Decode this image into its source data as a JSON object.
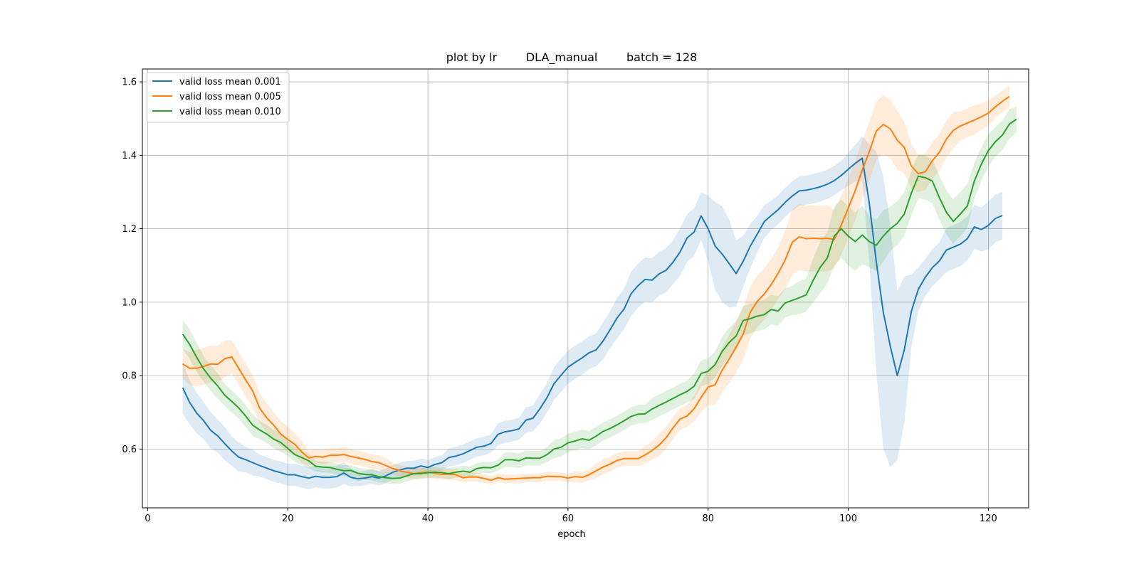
{
  "chart_data": {
    "type": "line",
    "title": "plot by lr        DLA_manual        batch = 128",
    "xlabel": "epoch",
    "ylabel": "",
    "xlim": [
      -0.75,
      125.75
    ],
    "ylim": [
      0.44,
      1.635
    ],
    "xticks": [
      0,
      20,
      40,
      60,
      80,
      100,
      120
    ],
    "yticks": [
      0.6,
      0.8,
      1.0,
      1.2,
      1.4,
      1.6
    ],
    "ytick_labels": [
      "0.6",
      "0.8",
      "1.0",
      "1.2",
      "1.4",
      "1.6"
    ],
    "grid": true,
    "legend_position": "upper-left",
    "x_start": 5,
    "series": [
      {
        "name": "valid loss mean 0.001",
        "color": "#1f77b4",
        "values": [
          0.767,
          0.727,
          0.698,
          0.677,
          0.651,
          0.636,
          0.615,
          0.595,
          0.578,
          0.571,
          0.563,
          0.555,
          0.548,
          0.541,
          0.536,
          0.53,
          0.53,
          0.525,
          0.521,
          0.526,
          0.523,
          0.523,
          0.525,
          0.535,
          0.523,
          0.519,
          0.521,
          0.525,
          0.521,
          0.527,
          0.537,
          0.543,
          0.548,
          0.548,
          0.554,
          0.55,
          0.558,
          0.563,
          0.577,
          0.581,
          0.587,
          0.596,
          0.605,
          0.608,
          0.615,
          0.64,
          0.647,
          0.65,
          0.655,
          0.679,
          0.684,
          0.71,
          0.74,
          0.778,
          0.801,
          0.823,
          0.836,
          0.848,
          0.862,
          0.87,
          0.894,
          0.925,
          0.957,
          0.981,
          1.023,
          1.045,
          1.062,
          1.06,
          1.077,
          1.087,
          1.109,
          1.137,
          1.175,
          1.191,
          1.235,
          1.2,
          1.153,
          1.131,
          1.105,
          1.078,
          1.111,
          1.152,
          1.185,
          1.219,
          1.236,
          1.252,
          1.272,
          1.289,
          1.303,
          1.305,
          1.309,
          1.314,
          1.321,
          1.331,
          1.345,
          1.362,
          1.378,
          1.392,
          1.27,
          1.11,
          0.973,
          0.88,
          0.8,
          0.87,
          0.975,
          1.035,
          1.068,
          1.094,
          1.112,
          1.142,
          1.15,
          1.158,
          1.173,
          1.205,
          1.198,
          1.209,
          1.228,
          1.236
        ],
        "band_width": [
          0.07,
          0.06,
          0.055,
          0.05,
          0.05,
          0.045,
          0.045,
          0.04,
          0.04,
          0.035,
          0.035,
          0.03,
          0.03,
          0.03,
          0.03,
          0.03,
          0.03,
          0.03,
          0.03,
          0.03,
          0.03,
          0.03,
          0.03,
          0.03,
          0.025,
          0.02,
          0.02,
          0.02,
          0.02,
          0.02,
          0.02,
          0.02,
          0.02,
          0.02,
          0.02,
          0.02,
          0.02,
          0.02,
          0.025,
          0.025,
          0.025,
          0.025,
          0.025,
          0.025,
          0.025,
          0.03,
          0.03,
          0.03,
          0.03,
          0.035,
          0.035,
          0.04,
          0.04,
          0.045,
          0.045,
          0.045,
          0.045,
          0.045,
          0.045,
          0.045,
          0.05,
          0.05,
          0.055,
          0.055,
          0.06,
          0.06,
          0.06,
          0.06,
          0.06,
          0.06,
          0.06,
          0.065,
          0.065,
          0.065,
          0.065,
          0.09,
          0.12,
          0.13,
          0.12,
          0.09,
          0.07,
          0.06,
          0.05,
          0.045,
          0.04,
          0.04,
          0.04,
          0.04,
          0.04,
          0.04,
          0.04,
          0.04,
          0.04,
          0.04,
          0.04,
          0.045,
          0.05,
          0.06,
          0.16,
          0.3,
          0.37,
          0.33,
          0.23,
          0.2,
          0.1,
          0.06,
          0.05,
          0.05,
          0.05,
          0.06,
          0.06,
          0.06,
          0.06,
          0.06,
          0.06,
          0.065,
          0.065,
          0.065
        ]
      },
      {
        "name": "valid loss mean 0.005",
        "color": "#ff7f0e",
        "values": [
          0.832,
          0.82,
          0.82,
          0.825,
          0.832,
          0.831,
          0.846,
          0.851,
          0.82,
          0.788,
          0.758,
          0.711,
          0.685,
          0.665,
          0.641,
          0.626,
          0.613,
          0.592,
          0.576,
          0.58,
          0.578,
          0.583,
          0.583,
          0.585,
          0.58,
          0.576,
          0.572,
          0.566,
          0.563,
          0.555,
          0.547,
          0.541,
          0.537,
          0.533,
          0.536,
          0.537,
          0.534,
          0.531,
          0.532,
          0.53,
          0.522,
          0.524,
          0.524,
          0.52,
          0.515,
          0.522,
          0.518,
          0.519,
          0.52,
          0.521,
          0.522,
          0.522,
          0.526,
          0.525,
          0.525,
          0.521,
          0.525,
          0.523,
          0.53,
          0.541,
          0.551,
          0.559,
          0.569,
          0.574,
          0.574,
          0.574,
          0.584,
          0.596,
          0.611,
          0.631,
          0.658,
          0.682,
          0.69,
          0.71,
          0.741,
          0.769,
          0.775,
          0.815,
          0.845,
          0.878,
          0.913,
          0.972,
          1.002,
          1.022,
          1.048,
          1.079,
          1.115,
          1.163,
          1.178,
          1.173,
          1.174,
          1.173,
          1.174,
          1.171,
          1.21,
          1.256,
          1.304,
          1.36,
          1.41,
          1.466,
          1.484,
          1.472,
          1.441,
          1.421,
          1.371,
          1.35,
          1.355,
          1.385,
          1.408,
          1.444,
          1.468,
          1.48,
          1.488,
          1.496,
          1.505,
          1.515,
          1.532,
          1.547,
          1.56
        ],
        "band_width": [
          0.04,
          0.045,
          0.05,
          0.05,
          0.05,
          0.05,
          0.05,
          0.045,
          0.045,
          0.045,
          0.045,
          0.04,
          0.04,
          0.035,
          0.035,
          0.035,
          0.03,
          0.03,
          0.02,
          0.02,
          0.02,
          0.02,
          0.02,
          0.02,
          0.02,
          0.02,
          0.02,
          0.02,
          0.02,
          0.02,
          0.015,
          0.015,
          0.015,
          0.015,
          0.015,
          0.015,
          0.015,
          0.015,
          0.015,
          0.015,
          0.012,
          0.012,
          0.012,
          0.012,
          0.012,
          0.012,
          0.012,
          0.012,
          0.012,
          0.012,
          0.012,
          0.012,
          0.012,
          0.012,
          0.012,
          0.012,
          0.015,
          0.015,
          0.015,
          0.02,
          0.02,
          0.02,
          0.02,
          0.02,
          0.02,
          0.02,
          0.025,
          0.025,
          0.03,
          0.03,
          0.03,
          0.03,
          0.03,
          0.035,
          0.04,
          0.05,
          0.055,
          0.06,
          0.065,
          0.07,
          0.07,
          0.07,
          0.07,
          0.07,
          0.07,
          0.07,
          0.08,
          0.09,
          0.09,
          0.09,
          0.09,
          0.09,
          0.09,
          0.08,
          0.08,
          0.08,
          0.08,
          0.08,
          0.08,
          0.08,
          0.08,
          0.08,
          0.08,
          0.07,
          0.06,
          0.05,
          0.05,
          0.05,
          0.05,
          0.05,
          0.05,
          0.04,
          0.04,
          0.04,
          0.035,
          0.035,
          0.03,
          0.03,
          0.03,
          0.03
        ]
      },
      {
        "name": "valid loss mean 0.010",
        "color": "#2ca02c",
        "values": [
          0.913,
          0.885,
          0.85,
          0.818,
          0.793,
          0.772,
          0.747,
          0.73,
          0.712,
          0.69,
          0.665,
          0.652,
          0.641,
          0.627,
          0.618,
          0.602,
          0.585,
          0.577,
          0.568,
          0.553,
          0.551,
          0.55,
          0.545,
          0.541,
          0.542,
          0.534,
          0.531,
          0.53,
          0.525,
          0.522,
          0.52,
          0.521,
          0.527,
          0.533,
          0.533,
          0.536,
          0.537,
          0.536,
          0.533,
          0.537,
          0.54,
          0.537,
          0.547,
          0.55,
          0.549,
          0.556,
          0.571,
          0.571,
          0.568,
          0.576,
          0.575,
          0.575,
          0.585,
          0.6,
          0.605,
          0.617,
          0.622,
          0.628,
          0.624,
          0.635,
          0.648,
          0.656,
          0.666,
          0.677,
          0.689,
          0.695,
          0.696,
          0.709,
          0.719,
          0.728,
          0.738,
          0.748,
          0.757,
          0.771,
          0.806,
          0.812,
          0.83,
          0.866,
          0.89,
          0.908,
          0.95,
          0.955,
          0.962,
          0.966,
          0.98,
          0.976,
          0.998,
          1.005,
          1.012,
          1.02,
          1.06,
          1.095,
          1.12,
          1.18,
          1.2,
          1.18,
          1.165,
          1.183,
          1.165,
          1.155,
          1.18,
          1.2,
          1.215,
          1.24,
          1.297,
          1.343,
          1.339,
          1.33,
          1.285,
          1.245,
          1.22,
          1.24,
          1.262,
          1.33,
          1.376,
          1.413,
          1.437,
          1.455,
          1.485,
          1.498
        ],
        "band_width": [
          0.04,
          0.04,
          0.04,
          0.035,
          0.035,
          0.035,
          0.03,
          0.03,
          0.03,
          0.03,
          0.03,
          0.025,
          0.025,
          0.025,
          0.025,
          0.02,
          0.02,
          0.02,
          0.02,
          0.015,
          0.015,
          0.015,
          0.015,
          0.015,
          0.015,
          0.015,
          0.015,
          0.015,
          0.015,
          0.015,
          0.015,
          0.015,
          0.015,
          0.015,
          0.015,
          0.015,
          0.015,
          0.015,
          0.015,
          0.015,
          0.015,
          0.015,
          0.015,
          0.015,
          0.015,
          0.015,
          0.02,
          0.02,
          0.02,
          0.02,
          0.02,
          0.02,
          0.02,
          0.025,
          0.025,
          0.025,
          0.025,
          0.025,
          0.025,
          0.025,
          0.025,
          0.025,
          0.025,
          0.025,
          0.025,
          0.025,
          0.025,
          0.03,
          0.03,
          0.03,
          0.03,
          0.03,
          0.03,
          0.035,
          0.035,
          0.035,
          0.035,
          0.04,
          0.04,
          0.04,
          0.04,
          0.04,
          0.04,
          0.04,
          0.04,
          0.04,
          0.04,
          0.04,
          0.045,
          0.045,
          0.06,
          0.07,
          0.07,
          0.08,
          0.08,
          0.08,
          0.08,
          0.08,
          0.07,
          0.07,
          0.07,
          0.06,
          0.06,
          0.06,
          0.06,
          0.06,
          0.06,
          0.06,
          0.06,
          0.06,
          0.06,
          0.06,
          0.06,
          0.05,
          0.045,
          0.045,
          0.04,
          0.04,
          0.04,
          0.035
        ]
      }
    ]
  }
}
